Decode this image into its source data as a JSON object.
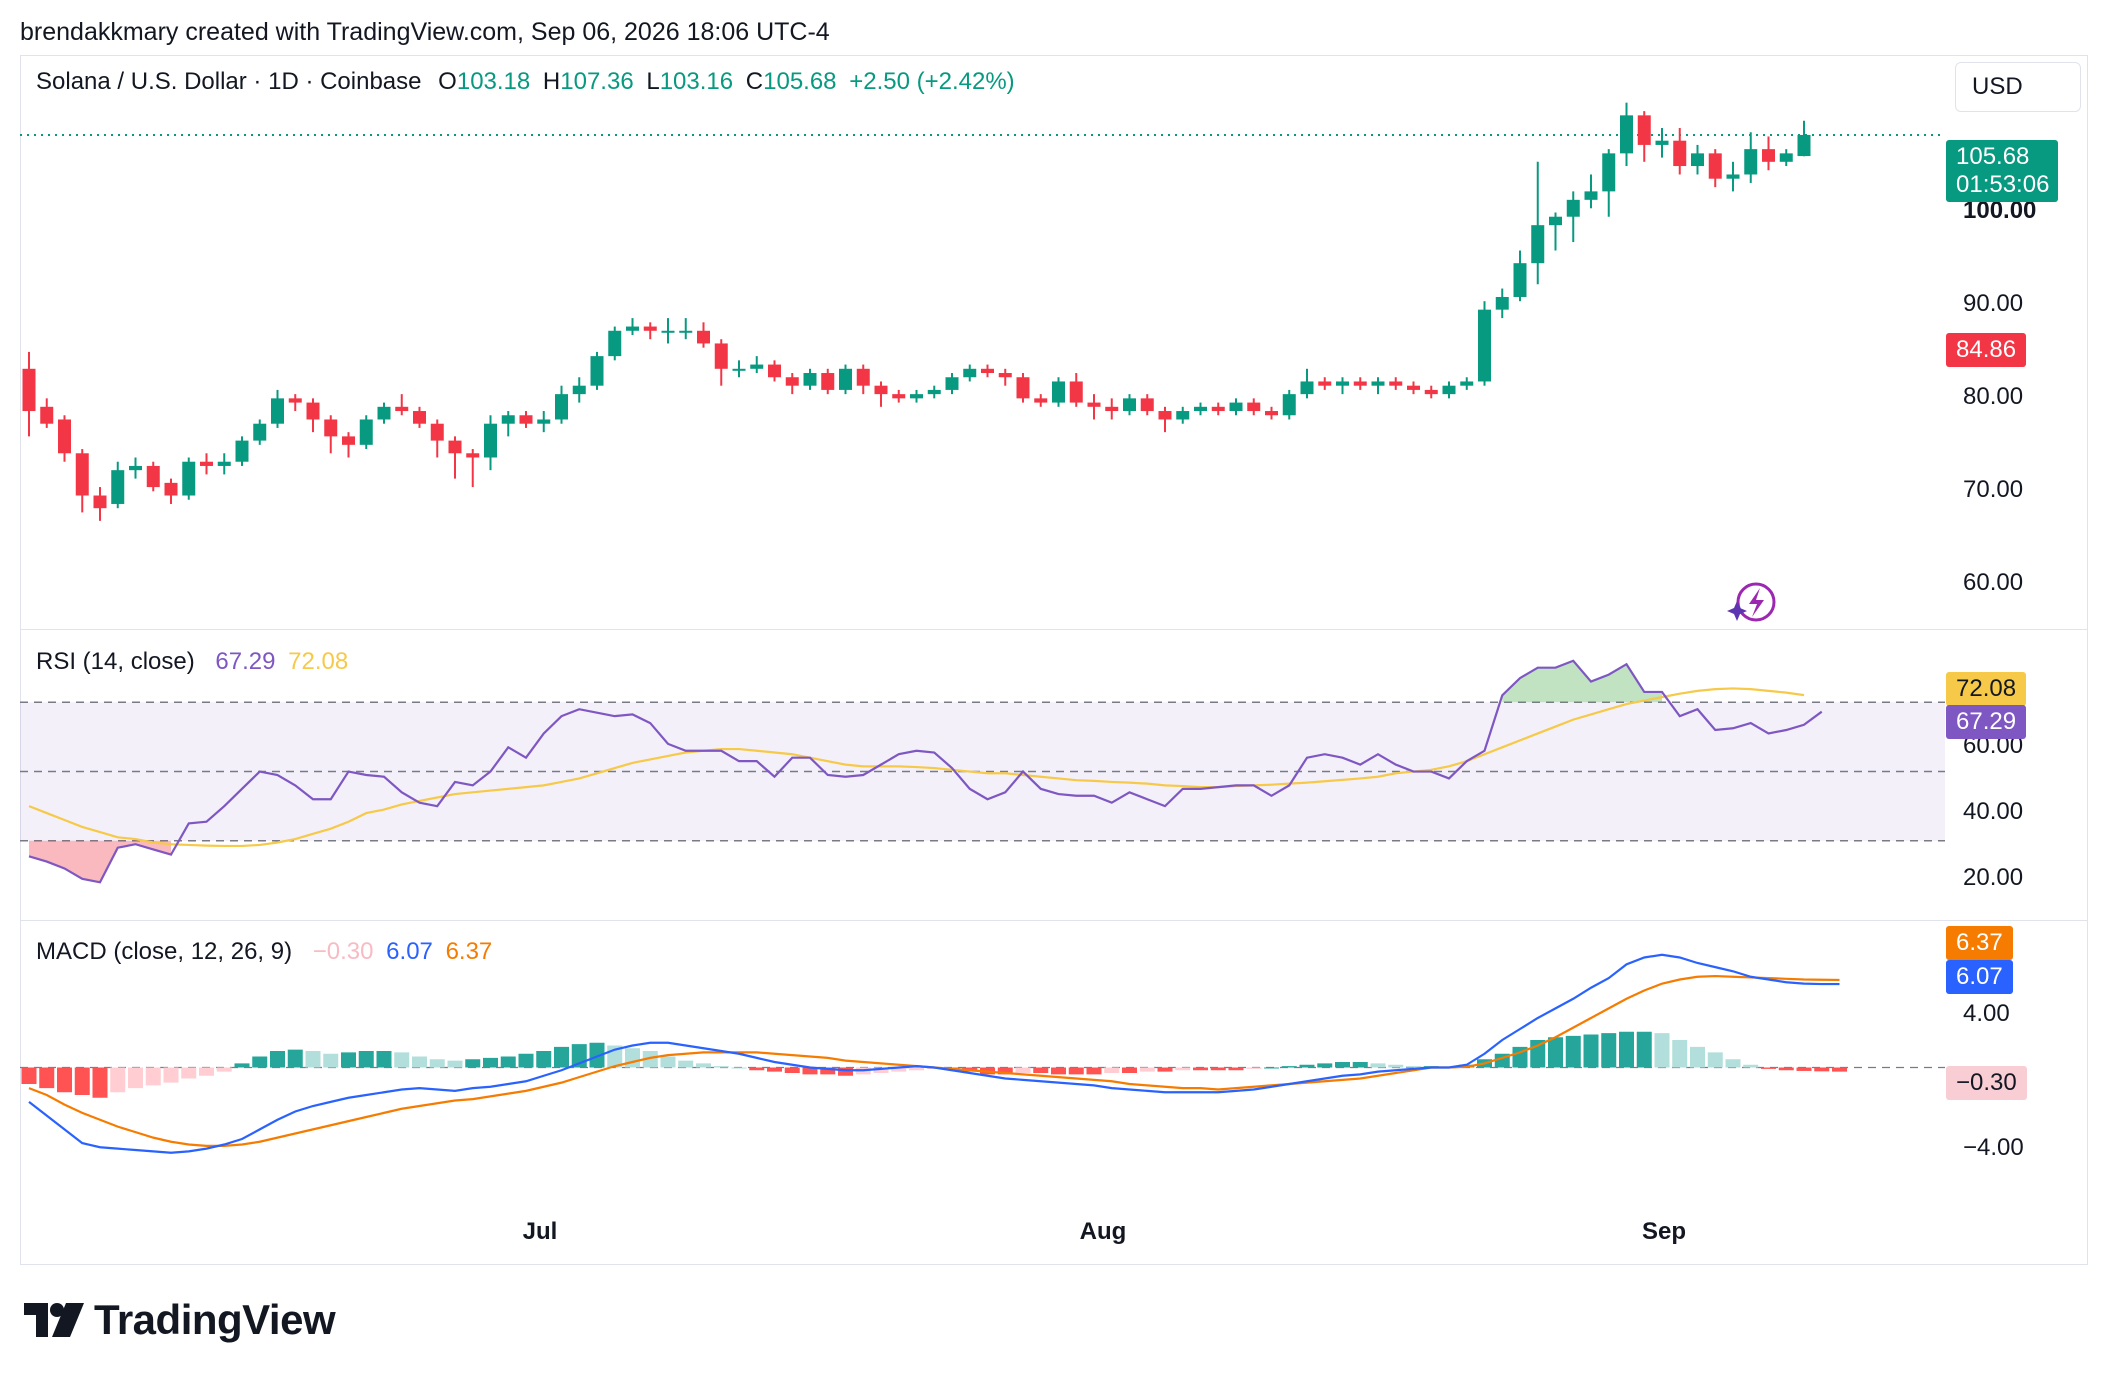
{
  "header": {
    "text": "brendakkmary created with TradingView.com, Sep 06, 2026 18:06 UTC-4"
  },
  "colors": {
    "up": "#089981",
    "down": "#f23645",
    "rsi": "#7e57c2",
    "rsi_ma": "#f7c948",
    "macd": "#2962ff",
    "signal": "#f57c00"
  },
  "price_legend": {
    "symbol": "Solana / U.S. Dollar · 1D · Coinbase",
    "o_label": "O",
    "o_value": "103.18",
    "h_label": "H",
    "h_value": "107.36",
    "l_label": "L",
    "l_value": "103.16",
    "c_label": "C",
    "c_value": "105.68",
    "change": "+2.50 (+2.42%)"
  },
  "currency_button": "USD",
  "price_axis": {
    "ticks": [
      "100.00",
      "90.00",
      "80.00",
      "70.00",
      "60.00"
    ],
    "last_price": "105.68",
    "countdown": "01:53:06",
    "marker": "84.86"
  },
  "rsi_legend": {
    "title": "RSI (14, close)",
    "rsi": "67.29",
    "ma": "72.08"
  },
  "rsi_axis": {
    "ticks": [
      "60.00",
      "40.00",
      "20.00"
    ],
    "ma_badge": "72.08",
    "rsi_badge": "67.29"
  },
  "macd_legend": {
    "title": "MACD (close, 12, 26, 9)",
    "hist": "−0.30",
    "macd": "6.07",
    "signal": "6.37"
  },
  "macd_axis": {
    "ticks": [
      "4.00",
      "−4.00"
    ],
    "signal_badge": "6.37",
    "macd_badge": "6.07",
    "hist_badge": "−0.30"
  },
  "x_axis": {
    "ticks": [
      "Jul",
      "Aug",
      "Sep"
    ]
  },
  "brand": {
    "name": "TradingView"
  },
  "chart_data": [
    {
      "type": "candlestick",
      "title": "Solana / U.S. Dollar · 1D · Coinbase",
      "ylim": [
        53,
        111
      ],
      "ohlc": [
        [
          78,
          80,
          70,
          73
        ],
        [
          73.5,
          74.5,
          71,
          71.5
        ],
        [
          72,
          72.5,
          67,
          68
        ],
        [
          68,
          68.5,
          61,
          63
        ],
        [
          63,
          64,
          60,
          61.5
        ],
        [
          62,
          67,
          61.5,
          66
        ],
        [
          66,
          67.5,
          65,
          66.5
        ],
        [
          66.5,
          67,
          63.5,
          64
        ],
        [
          64.5,
          65,
          62,
          63
        ],
        [
          63,
          67.5,
          62.5,
          67
        ],
        [
          67,
          68,
          65.5,
          66.5
        ],
        [
          66.5,
          68,
          65.5,
          67
        ],
        [
          67,
          70,
          66.5,
          69.5
        ],
        [
          69.5,
          72,
          69,
          71.5
        ],
        [
          71.5,
          75.5,
          71,
          74.5
        ],
        [
          74.5,
          75,
          73,
          74
        ],
        [
          74,
          74.5,
          70.5,
          72
        ],
        [
          72,
          72.5,
          68,
          70
        ],
        [
          70,
          70.5,
          67.5,
          69
        ],
        [
          69,
          72.5,
          68.5,
          72
        ],
        [
          72,
          74,
          71.5,
          73.5
        ],
        [
          73.5,
          75,
          72.5,
          73
        ],
        [
          73,
          73.5,
          71,
          71.5
        ],
        [
          71.5,
          72,
          67.5,
          69.5
        ],
        [
          69.5,
          70,
          65,
          68
        ],
        [
          68,
          68.5,
          64,
          67.5
        ],
        [
          67.5,
          72.5,
          66,
          71.5
        ],
        [
          71.5,
          73,
          70,
          72.5
        ],
        [
          72.5,
          73,
          71,
          71.5
        ],
        [
          71.5,
          73,
          70.5,
          72
        ],
        [
          72,
          76,
          71.5,
          75
        ],
        [
          75,
          77,
          74,
          76
        ],
        [
          76,
          80,
          75.5,
          79.5
        ],
        [
          79.5,
          83,
          79,
          82.5
        ],
        [
          82.5,
          84,
          82,
          83
        ],
        [
          83,
          83.5,
          81.5,
          82.5
        ],
        [
          82.5,
          84,
          81,
          82.5
        ],
        [
          82.5,
          84,
          81.5,
          82.5
        ],
        [
          82.5,
          83.5,
          80.5,
          81
        ],
        [
          81,
          81.5,
          76,
          78
        ],
        [
          78,
          79,
          77,
          78
        ],
        [
          78,
          79.5,
          77.5,
          78.5
        ],
        [
          78.5,
          79,
          76.5,
          77
        ],
        [
          77,
          77.5,
          75,
          76
        ],
        [
          76,
          78,
          75.5,
          77.5
        ],
        [
          77.5,
          78,
          75,
          75.5
        ],
        [
          75.5,
          78.5,
          75,
          78
        ],
        [
          78,
          78.5,
          75,
          76
        ],
        [
          76,
          76.5,
          73.5,
          75
        ],
        [
          75,
          75.5,
          74,
          74.5
        ],
        [
          74.5,
          75.5,
          74,
          75
        ],
        [
          75,
          76,
          74.5,
          75.5
        ],
        [
          75.5,
          77.5,
          75,
          77
        ],
        [
          77,
          78.5,
          76.5,
          78
        ],
        [
          78,
          78.5,
          77,
          77.5
        ],
        [
          77.5,
          78,
          76,
          77
        ],
        [
          77,
          77.5,
          74,
          74.5
        ],
        [
          74.5,
          75,
          73.5,
          74
        ],
        [
          74,
          77,
          73.5,
          76.5
        ],
        [
          76.5,
          77.5,
          73.5,
          74
        ],
        [
          74,
          75,
          72,
          73.5
        ],
        [
          73.5,
          74.5,
          72,
          73
        ],
        [
          73,
          75,
          72.5,
          74.5
        ],
        [
          74.5,
          75,
          72.5,
          73
        ],
        [
          73,
          73.5,
          70.5,
          72
        ],
        [
          72,
          73.5,
          71.5,
          73
        ],
        [
          73,
          74,
          72.5,
          73.5
        ],
        [
          73.5,
          74,
          72.5,
          73
        ],
        [
          73,
          74.5,
          72.5,
          74
        ],
        [
          74,
          74.5,
          72.5,
          73
        ],
        [
          73,
          73.5,
          72,
          72.5
        ],
        [
          72.5,
          75.5,
          72,
          75
        ],
        [
          75,
          78,
          74.5,
          76.5
        ],
        [
          76.5,
          77,
          75.5,
          76
        ],
        [
          76,
          77,
          75,
          76.5
        ],
        [
          76.5,
          77,
          75.5,
          76
        ],
        [
          76,
          77,
          75,
          76.5
        ],
        [
          76.5,
          77,
          75.5,
          76
        ],
        [
          76,
          76.5,
          75,
          75.5
        ],
        [
          75.5,
          76,
          74.5,
          75
        ],
        [
          75,
          76.5,
          74.5,
          76
        ],
        [
          76,
          77,
          75.5,
          76.5
        ],
        [
          76.5,
          86,
          76,
          85
        ],
        [
          85,
          87.5,
          84,
          86.5
        ],
        [
          86.5,
          92,
          86,
          90.5
        ],
        [
          90.5,
          102.5,
          88,
          95
        ],
        [
          95,
          96.5,
          92,
          96
        ],
        [
          96,
          99,
          93,
          98
        ],
        [
          98,
          101,
          97,
          99
        ],
        [
          99,
          104,
          96,
          103.5
        ],
        [
          103.5,
          109.5,
          102,
          108
        ],
        [
          108,
          108.5,
          102.5,
          104.5
        ],
        [
          104.5,
          106.5,
          103,
          105
        ],
        [
          105,
          106.5,
          101,
          102
        ],
        [
          102,
          104.5,
          101,
          103.5
        ],
        [
          103.5,
          104,
          99.5,
          100.5
        ],
        [
          100.5,
          102.5,
          99,
          101
        ],
        [
          101,
          106,
          100,
          104
        ],
        [
          104,
          105.5,
          101.5,
          102.5
        ],
        [
          102.5,
          104,
          102,
          103.5
        ],
        [
          103.18,
          107.36,
          103.16,
          105.68
        ]
      ]
    },
    {
      "type": "line",
      "title": "RSI (14, close)",
      "ylim": [
        10,
        88
      ],
      "bands": [
        30,
        50,
        70
      ],
      "series": [
        {
          "name": "RSI",
          "values": [
            25.5,
            24,
            22,
            19,
            18,
            28,
            29,
            27.5,
            26,
            35,
            35.5,
            40,
            45,
            50,
            49,
            46,
            42,
            42,
            50,
            49,
            48.5,
            44,
            41,
            40,
            47,
            46,
            50,
            57,
            54,
            61,
            66,
            68,
            67,
            66,
            66.5,
            64,
            58,
            56,
            56,
            56,
            53,
            53,
            48.5,
            54,
            54,
            49,
            48.5,
            49,
            52,
            55,
            56,
            55.5,
            51,
            45,
            42,
            44,
            50,
            45,
            43.5,
            43,
            43,
            41,
            44,
            42,
            40,
            45,
            45,
            45.5,
            46,
            46,
            43,
            46,
            54,
            55,
            54,
            52,
            55,
            52,
            50,
            50,
            48,
            53,
            56,
            72,
            77,
            80,
            80,
            82,
            76,
            78,
            81,
            73,
            73,
            66,
            68,
            62,
            62.5,
            64,
            61,
            62,
            63.5,
            67.29
          ]
        },
        {
          "name": "MA",
          "values": [
            40,
            38,
            36,
            34,
            32.5,
            31,
            30.5,
            29.5,
            29,
            28.8,
            28.6,
            28.5,
            28.5,
            28.8,
            29.5,
            30.5,
            32,
            33.5,
            35.5,
            38,
            39,
            40.5,
            41.5,
            42.5,
            43.5,
            44,
            44.5,
            45,
            45.5,
            46,
            47,
            48,
            49.5,
            51,
            52.5,
            53.5,
            54.5,
            55.5,
            56,
            56.5,
            56.5,
            56,
            55.5,
            55,
            54,
            53,
            52,
            51.5,
            51.5,
            51.5,
            51.3,
            51,
            50.5,
            50,
            49.5,
            49.5,
            49,
            48.5,
            48,
            47.5,
            47.3,
            47,
            46.8,
            46.5,
            46,
            45.8,
            45.5,
            45.5,
            45.8,
            46,
            46.2,
            46.5,
            46.8,
            47.2,
            47.6,
            48,
            48.5,
            49.5,
            50,
            50.5,
            51.5,
            53,
            55,
            57,
            59,
            61,
            63,
            65,
            66.5,
            68,
            69.5,
            70.5,
            71.5,
            72.5,
            73.3,
            73.8,
            74,
            73.8,
            73.3,
            72.8,
            72.08
          ]
        }
      ]
    },
    {
      "type": "bar+line",
      "title": "MACD (close, 12, 26, 9)",
      "ylim": [
        -10,
        10
      ],
      "series": [
        {
          "name": "Histogram",
          "values": [
            -1.2,
            -1.5,
            -1.8,
            -2,
            -2.2,
            -1.8,
            -1.5,
            -1.3,
            -1.1,
            -0.8,
            -0.6,
            -0.3,
            0.3,
            0.8,
            1.2,
            1.3,
            1.2,
            1,
            1.1,
            1.2,
            1.2,
            1.1,
            0.8,
            0.6,
            0.5,
            0.6,
            0.7,
            0.8,
            1,
            1.2,
            1.5,
            1.7,
            1.8,
            1.6,
            1.4,
            1.2,
            0.8,
            0.5,
            0.3,
            0.1,
            0,
            -0.2,
            -0.3,
            -0.4,
            -0.5,
            -0.5,
            -0.6,
            -0.5,
            -0.4,
            -0.3,
            -0.2,
            -0.1,
            -0.2,
            -0.3,
            -0.5,
            -0.5,
            -0.4,
            -0.4,
            -0.5,
            -0.5,
            -0.5,
            -0.4,
            -0.4,
            -0.3,
            -0.3,
            -0.2,
            -0.2,
            -0.2,
            -0.2,
            -0.1,
            0,
            0.1,
            0.2,
            0.3,
            0.4,
            0.4,
            0.3,
            0.2,
            0.1,
            0.1,
            0,
            0.2,
            0.6,
            1,
            1.5,
            2,
            2.2,
            2.3,
            2.4,
            2.5,
            2.6,
            2.6,
            2.5,
            2,
            1.5,
            1.1,
            0.6,
            0.2,
            -0.1,
            -0.2,
            -0.25,
            -0.28,
            -0.3
          ]
        },
        {
          "name": "MACD",
          "values": [
            -2.5,
            -3.5,
            -4.5,
            -5.5,
            -5.8,
            -5.9,
            -6,
            -6.1,
            -6.2,
            -6.1,
            -5.9,
            -5.6,
            -5.2,
            -4.5,
            -3.8,
            -3.2,
            -2.8,
            -2.5,
            -2.2,
            -2,
            -1.8,
            -1.6,
            -1.5,
            -1.6,
            -1.7,
            -1.5,
            -1.4,
            -1.2,
            -1,
            -0.6,
            -0.2,
            0.3,
            0.8,
            1.3,
            1.6,
            1.8,
            1.8,
            1.6,
            1.4,
            1.2,
            1,
            0.7,
            0.4,
            0.2,
            0,
            -0.1,
            -0.2,
            -0.2,
            -0.1,
            0,
            0.1,
            0,
            -0.2,
            -0.4,
            -0.6,
            -0.8,
            -0.9,
            -1,
            -1.1,
            -1.2,
            -1.3,
            -1.5,
            -1.6,
            -1.7,
            -1.8,
            -1.8,
            -1.8,
            -1.8,
            -1.7,
            -1.6,
            -1.4,
            -1.2,
            -1,
            -0.8,
            -0.6,
            -0.5,
            -0.3,
            -0.2,
            -0.1,
            0,
            0,
            0.2,
            1,
            2,
            2.8,
            3.6,
            4.3,
            5,
            5.8,
            6.5,
            7.5,
            8,
            8.2,
            8,
            7.6,
            7.3,
            7,
            6.6,
            6.4,
            6.2,
            6.1,
            6.07,
            6.07
          ]
        },
        {
          "name": "Signal",
          "values": [
            -1.5,
            -2,
            -2.7,
            -3.3,
            -3.8,
            -4.3,
            -4.7,
            -5.1,
            -5.4,
            -5.6,
            -5.7,
            -5.7,
            -5.6,
            -5.4,
            -5.1,
            -4.8,
            -4.5,
            -4.2,
            -3.9,
            -3.6,
            -3.3,
            -3,
            -2.8,
            -2.6,
            -2.4,
            -2.3,
            -2.1,
            -1.9,
            -1.7,
            -1.4,
            -1.1,
            -0.7,
            -0.3,
            0.1,
            0.4,
            0.7,
            0.9,
            1,
            1.1,
            1.1,
            1.1,
            1.1,
            1,
            0.9,
            0.8,
            0.7,
            0.5,
            0.4,
            0.3,
            0.2,
            0.1,
            0,
            -0.1,
            -0.2,
            -0.3,
            -0.4,
            -0.5,
            -0.6,
            -0.7,
            -0.8,
            -0.9,
            -1,
            -1.2,
            -1.3,
            -1.4,
            -1.5,
            -1.5,
            -1.6,
            -1.5,
            -1.4,
            -1.3,
            -1.2,
            -1.1,
            -1,
            -0.9,
            -0.8,
            -0.6,
            -0.4,
            -0.2,
            0,
            0,
            0.05,
            0.3,
            0.7,
            1.1,
            1.6,
            2.2,
            2.9,
            3.6,
            4.3,
            5,
            5.6,
            6.1,
            6.4,
            6.6,
            6.65,
            6.6,
            6.55,
            6.5,
            6.45,
            6.4,
            6.38,
            6.37
          ]
        }
      ]
    }
  ]
}
